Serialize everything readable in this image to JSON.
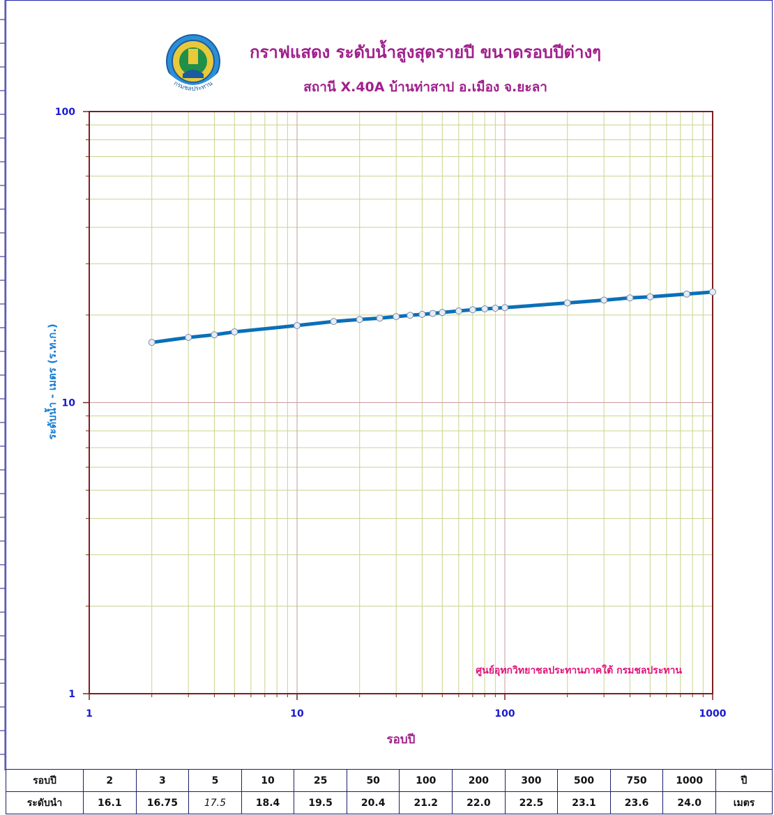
{
  "header": {
    "title": "กราฟแสดง ระดับน้ำสูงสุดรายปี ขนาดรอบปีต่างๆ",
    "subtitle": "สถานี X.40A บ้านท่าสาป อ.เมือง จ.ยะลา",
    "logo_text": "กรมชลประทาน"
  },
  "chart_data": {
    "type": "line",
    "xscale": "log",
    "yscale": "log",
    "xlim": [
      1,
      1000
    ],
    "ylim": [
      1,
      100
    ],
    "xlabel": "รอบปี",
    "ylabel": "ระดับน้ำ  -  เมตร (ร.ท.ก.)",
    "xticks": [
      "1",
      "10",
      "100",
      "1000"
    ],
    "yticks": [
      "1",
      "10",
      "100"
    ],
    "annotation": "ศูนย์อุทกวิทยาชลประทานภาคใต้  กรมชลประทาน",
    "grid": true,
    "series": [
      {
        "x": [
          2,
          3,
          4,
          5,
          10,
          15,
          20,
          25,
          30,
          35,
          40,
          45,
          50,
          60,
          70,
          80,
          90,
          100,
          200,
          300,
          400,
          500,
          750,
          1000
        ],
        "y": [
          16.1,
          16.75,
          17.1,
          17.5,
          18.4,
          19.0,
          19.3,
          19.5,
          19.75,
          19.95,
          20.1,
          20.25,
          20.4,
          20.65,
          20.85,
          21.0,
          21.1,
          21.2,
          22.0,
          22.5,
          22.9,
          23.1,
          23.6,
          24.0
        ],
        "color": "#0b6fb8",
        "marker": "circle"
      }
    ],
    "colors": {
      "frame": "#7a1f1f",
      "grid_major": "#c89aa0",
      "grid_minor": "#c8d48a",
      "tick_labels": "#1a1ad0",
      "ylabel": "#1a7fd4",
      "xlabel": "#a0208c",
      "annotation": "#e0147a"
    }
  },
  "table": {
    "row1_label": "รอบปี",
    "row1_values": [
      "2",
      "3",
      "5",
      "10",
      "25",
      "50",
      "100",
      "200",
      "300",
      "500",
      "750",
      "1000"
    ],
    "row1_unit": "ปี",
    "row2_label": "ระดับนำ",
    "row2_values": [
      "16.1",
      "16.75",
      "17.5",
      "18.4",
      "19.5",
      "20.4",
      "21.2",
      "22.0",
      "22.5",
      "23.1",
      "23.6",
      "24.0"
    ],
    "row2_unit": "เมตร"
  }
}
